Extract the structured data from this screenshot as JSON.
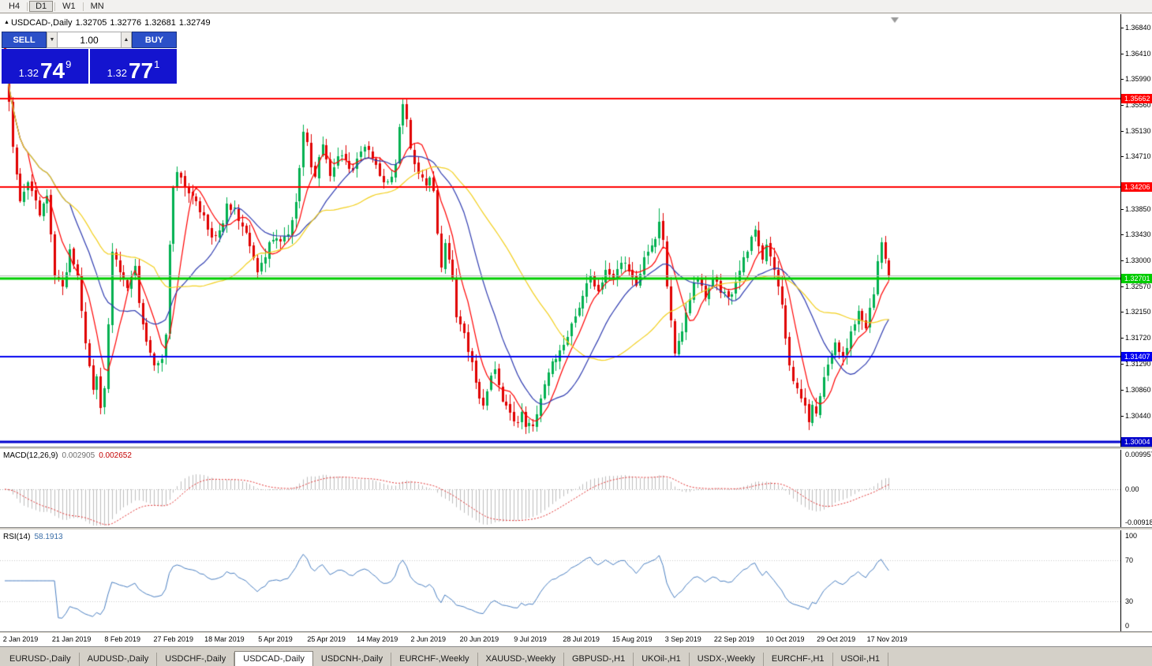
{
  "toolbar": {
    "timeframes": [
      "H4",
      "D1",
      "W1",
      "MN"
    ],
    "active": "D1"
  },
  "icons": {
    "chart_marker": "▲",
    "spinner_down": "▼",
    "spinner_up": "▲"
  },
  "chart": {
    "symbol_period": "USDCAD-,Daily",
    "open": "1.32705",
    "high": "1.32776",
    "low": "1.32681",
    "close": "1.32749"
  },
  "trade_panel": {
    "sell_label": "SELL",
    "buy_label": "BUY",
    "volume": "1.00",
    "sell_price": {
      "base": "1.32",
      "big": "74",
      "sup": "9"
    },
    "buy_price": {
      "base": "1.32",
      "big": "77",
      "sup": "1"
    }
  },
  "price_scale": {
    "ticks": [
      "1.36840",
      "1.36410",
      "1.35990",
      "1.35560",
      "1.35130",
      "1.34710",
      "1.33850",
      "1.33430",
      "1.33000",
      "1.32570",
      "1.32150",
      "1.31720",
      "1.31290",
      "1.30860",
      "1.30440"
    ]
  },
  "hlines": [
    {
      "price": 1.35662,
      "label": "1.35662",
      "color": "#ff0000",
      "lw": 2
    },
    {
      "price": 1.34206,
      "label": "1.34206",
      "color": "#ff0000",
      "lw": 2
    },
    {
      "price": 1.32701,
      "label": "1.32701",
      "color": "#00cc00",
      "lw": 3
    },
    {
      "price": 1.31407,
      "label": "1.31407",
      "color": "#0000f0",
      "lw": 2
    },
    {
      "price": 1.30004,
      "label": "1.30004",
      "color": "#0000cc",
      "lw": 3
    }
  ],
  "bid_line": {
    "price": 1.32749,
    "color": "#b8b8b8"
  },
  "macd_panel": {
    "name": "MACD(12,26,9)",
    "value": "0.002905",
    "signal_value": "0.002652",
    "scale_labels": [
      "0.009957",
      "0.00",
      "-0.009186"
    ]
  },
  "rsi_panel": {
    "name": "RSI(14)",
    "value": "58.1913",
    "scale_labels": [
      "100",
      "70",
      "30",
      "0"
    ],
    "levels": [
      70,
      30
    ]
  },
  "time_axis": {
    "labels": [
      "2 Jan 2019",
      "21 Jan 2019",
      "8 Feb 2019",
      "27 Feb 2019",
      "18 Mar 2019",
      "5 Apr 2019",
      "25 Apr 2019",
      "14 May 2019",
      "2 Jun 2019",
      "20 Jun 2019",
      "9 Jul 2019",
      "28 Jul 2019",
      "15 Aug 2019",
      "3 Sep 2019",
      "22 Sep 2019",
      "10 Oct 2019",
      "29 Oct 2019",
      "17 Nov 2019"
    ]
  },
  "tabs": [
    {
      "label": "EURUSD-,Daily"
    },
    {
      "label": "AUDUSD-,Daily"
    },
    {
      "label": "USDCHF-,Daily"
    },
    {
      "label": "USDCAD-,Daily",
      "active": true
    },
    {
      "label": "USDCNH-,Daily"
    },
    {
      "label": "EURCHF-,Weekly"
    },
    {
      "label": "XAUUSD-,Weekly"
    },
    {
      "label": "GBPUSD-,H1"
    },
    {
      "label": "UKOil-,H1"
    },
    {
      "label": "USDX-,Weekly"
    },
    {
      "label": "EURCHF-,H1"
    },
    {
      "label": "USOil-,H1"
    }
  ],
  "colors": {
    "bull": "#00b050",
    "bear": "#e00000",
    "ma_fast": "#ff0000",
    "ma_mid": "#2e3bb0",
    "ma_slow": "#f2cf1d",
    "macd_hist": "#bdbdbd",
    "macd_signal": "#e03030",
    "rsi": "#4a7fc1",
    "trade_button": "#2b50c8",
    "trade_price_bg": "#1414cf"
  },
  "chart_data": {
    "type": "candlestick",
    "symbol": "USDCAD",
    "period": "Daily",
    "candles": 232,
    "price_top": 1.37055,
    "price_bottom": 1.2993,
    "last_ohlc": {
      "open": 1.32705,
      "high": 1.32776,
      "low": 1.32681,
      "close": 1.32749
    },
    "moving_averages": [
      {
        "period": 7,
        "color": "#ff0000"
      },
      {
        "period": 18,
        "color": "#2e3bb0"
      },
      {
        "period": 40,
        "color": "#f2cf1d"
      }
    ],
    "macd": {
      "fast": 12,
      "slow": 26,
      "signal": 9,
      "value": 0.002905,
      "signal_value": 0.002652
    },
    "rsi": {
      "period": 14,
      "value": 58.1913
    },
    "close_waypoints": [
      [
        0,
        1.362
      ],
      [
        1,
        1.356
      ],
      [
        2,
        1.349
      ],
      [
        4,
        1.34
      ],
      [
        6,
        1.343
      ],
      [
        9,
        1.3375
      ],
      [
        11,
        1.34
      ],
      [
        13,
        1.328
      ],
      [
        15,
        1.325
      ],
      [
        17,
        1.3315
      ],
      [
        19,
        1.327
      ],
      [
        21,
        1.317
      ],
      [
        23,
        1.308
      ],
      [
        24,
        1.311
      ],
      [
        25,
        1.306
      ],
      [
        26,
        1.309
      ],
      [
        27,
        1.32
      ],
      [
        28,
        1.332
      ],
      [
        30,
        1.328
      ],
      [
        32,
        1.325
      ],
      [
        34,
        1.329
      ],
      [
        35,
        1.323
      ],
      [
        37,
        1.316
      ],
      [
        39,
        1.3125
      ],
      [
        41,
        1.314
      ],
      [
        42,
        1.318
      ],
      [
        43,
        1.332
      ],
      [
        44,
        1.342
      ],
      [
        45,
        1.3445
      ],
      [
        47,
        1.342
      ],
      [
        49,
        1.34
      ],
      [
        51,
        1.3385
      ],
      [
        53,
        1.3355
      ],
      [
        55,
        1.3335
      ],
      [
        57,
        1.3365
      ],
      [
        58,
        1.34
      ],
      [
        60,
        1.338
      ],
      [
        62,
        1.3355
      ],
      [
        64,
        1.333
      ],
      [
        66,
        1.3285
      ],
      [
        68,
        1.331
      ],
      [
        70,
        1.334
      ],
      [
        72,
        1.333
      ],
      [
        74,
        1.3345
      ],
      [
        76,
        1.339
      ],
      [
        77,
        1.345
      ],
      [
        78,
        1.351
      ],
      [
        79,
        1.3495
      ],
      [
        80,
        1.346
      ],
      [
        81,
        1.344
      ],
      [
        82,
        1.347
      ],
      [
        83,
        1.3495
      ],
      [
        84,
        1.3465
      ],
      [
        85,
        1.344
      ],
      [
        86,
        1.3455
      ],
      [
        88,
        1.3478
      ],
      [
        90,
        1.3445
      ],
      [
        92,
        1.3462
      ],
      [
        94,
        1.349
      ],
      [
        96,
        1.347
      ],
      [
        98,
        1.344
      ],
      [
        100,
        1.3425
      ],
      [
        102,
        1.3455
      ],
      [
        103,
        1.3515
      ],
      [
        104,
        1.3552
      ],
      [
        105,
        1.354
      ],
      [
        106,
        1.348
      ],
      [
        107,
        1.3452
      ],
      [
        108,
        1.3442
      ],
      [
        110,
        1.342
      ],
      [
        111,
        1.3442
      ],
      [
        112,
        1.3408
      ],
      [
        113,
        1.334
      ],
      [
        114,
        1.329
      ],
      [
        115,
        1.3332
      ],
      [
        116,
        1.3308
      ],
      [
        117,
        1.3268
      ],
      [
        118,
        1.3212
      ],
      [
        120,
        1.318
      ],
      [
        122,
        1.3128
      ],
      [
        123,
        1.3092
      ],
      [
        125,
        1.306
      ],
      [
        127,
        1.3112
      ],
      [
        128,
        1.3126
      ],
      [
        129,
        1.3088
      ],
      [
        131,
        1.3058
      ],
      [
        133,
        1.303
      ],
      [
        135,
        1.3046
      ],
      [
        136,
        1.3024
      ],
      [
        137,
        1.3036
      ],
      [
        138,
        1.302
      ],
      [
        139,
        1.3052
      ],
      [
        141,
        1.3092
      ],
      [
        143,
        1.3132
      ],
      [
        145,
        1.3152
      ],
      [
        147,
        1.318
      ],
      [
        149,
        1.3202
      ],
      [
        151,
        1.3242
      ],
      [
        153,
        1.3272
      ],
      [
        155,
        1.3252
      ],
      [
        157,
        1.3282
      ],
      [
        159,
        1.3262
      ],
      [
        161,
        1.3302
      ],
      [
        163,
        1.3282
      ],
      [
        165,
        1.3262
      ],
      [
        167,
        1.3302
      ],
      [
        169,
        1.3322
      ],
      [
        171,
        1.3356
      ],
      [
        172,
        1.333
      ],
      [
        173,
        1.3252
      ],
      [
        175,
        1.315
      ],
      [
        177,
        1.3182
      ],
      [
        179,
        1.3242
      ],
      [
        181,
        1.3272
      ],
      [
        183,
        1.3232
      ],
      [
        185,
        1.3272
      ],
      [
        187,
        1.3252
      ],
      [
        189,
        1.3236
      ],
      [
        191,
        1.3262
      ],
      [
        193,
        1.3302
      ],
      [
        195,
        1.3332
      ],
      [
        196,
        1.3346
      ],
      [
        197,
        1.3322
      ],
      [
        198,
        1.3302
      ],
      [
        199,
        1.333
      ],
      [
        200,
        1.3312
      ],
      [
        201,
        1.3282
      ],
      [
        202,
        1.3252
      ],
      [
        203,
        1.3222
      ],
      [
        205,
        1.3132
      ],
      [
        207,
        1.3082
      ],
      [
        209,
        1.3056
      ],
      [
        210,
        1.304
      ],
      [
        211,
        1.3062
      ],
      [
        212,
        1.3052
      ],
      [
        213,
        1.3082
      ],
      [
        215,
        1.3132
      ],
      [
        217,
        1.3166
      ],
      [
        219,
        1.3142
      ],
      [
        221,
        1.3182
      ],
      [
        223,
        1.3212
      ],
      [
        225,
        1.3192
      ],
      [
        227,
        1.3242
      ],
      [
        228,
        1.3292
      ],
      [
        229,
        1.3332
      ],
      [
        230,
        1.3302
      ],
      [
        231,
        1.32749
      ]
    ]
  }
}
